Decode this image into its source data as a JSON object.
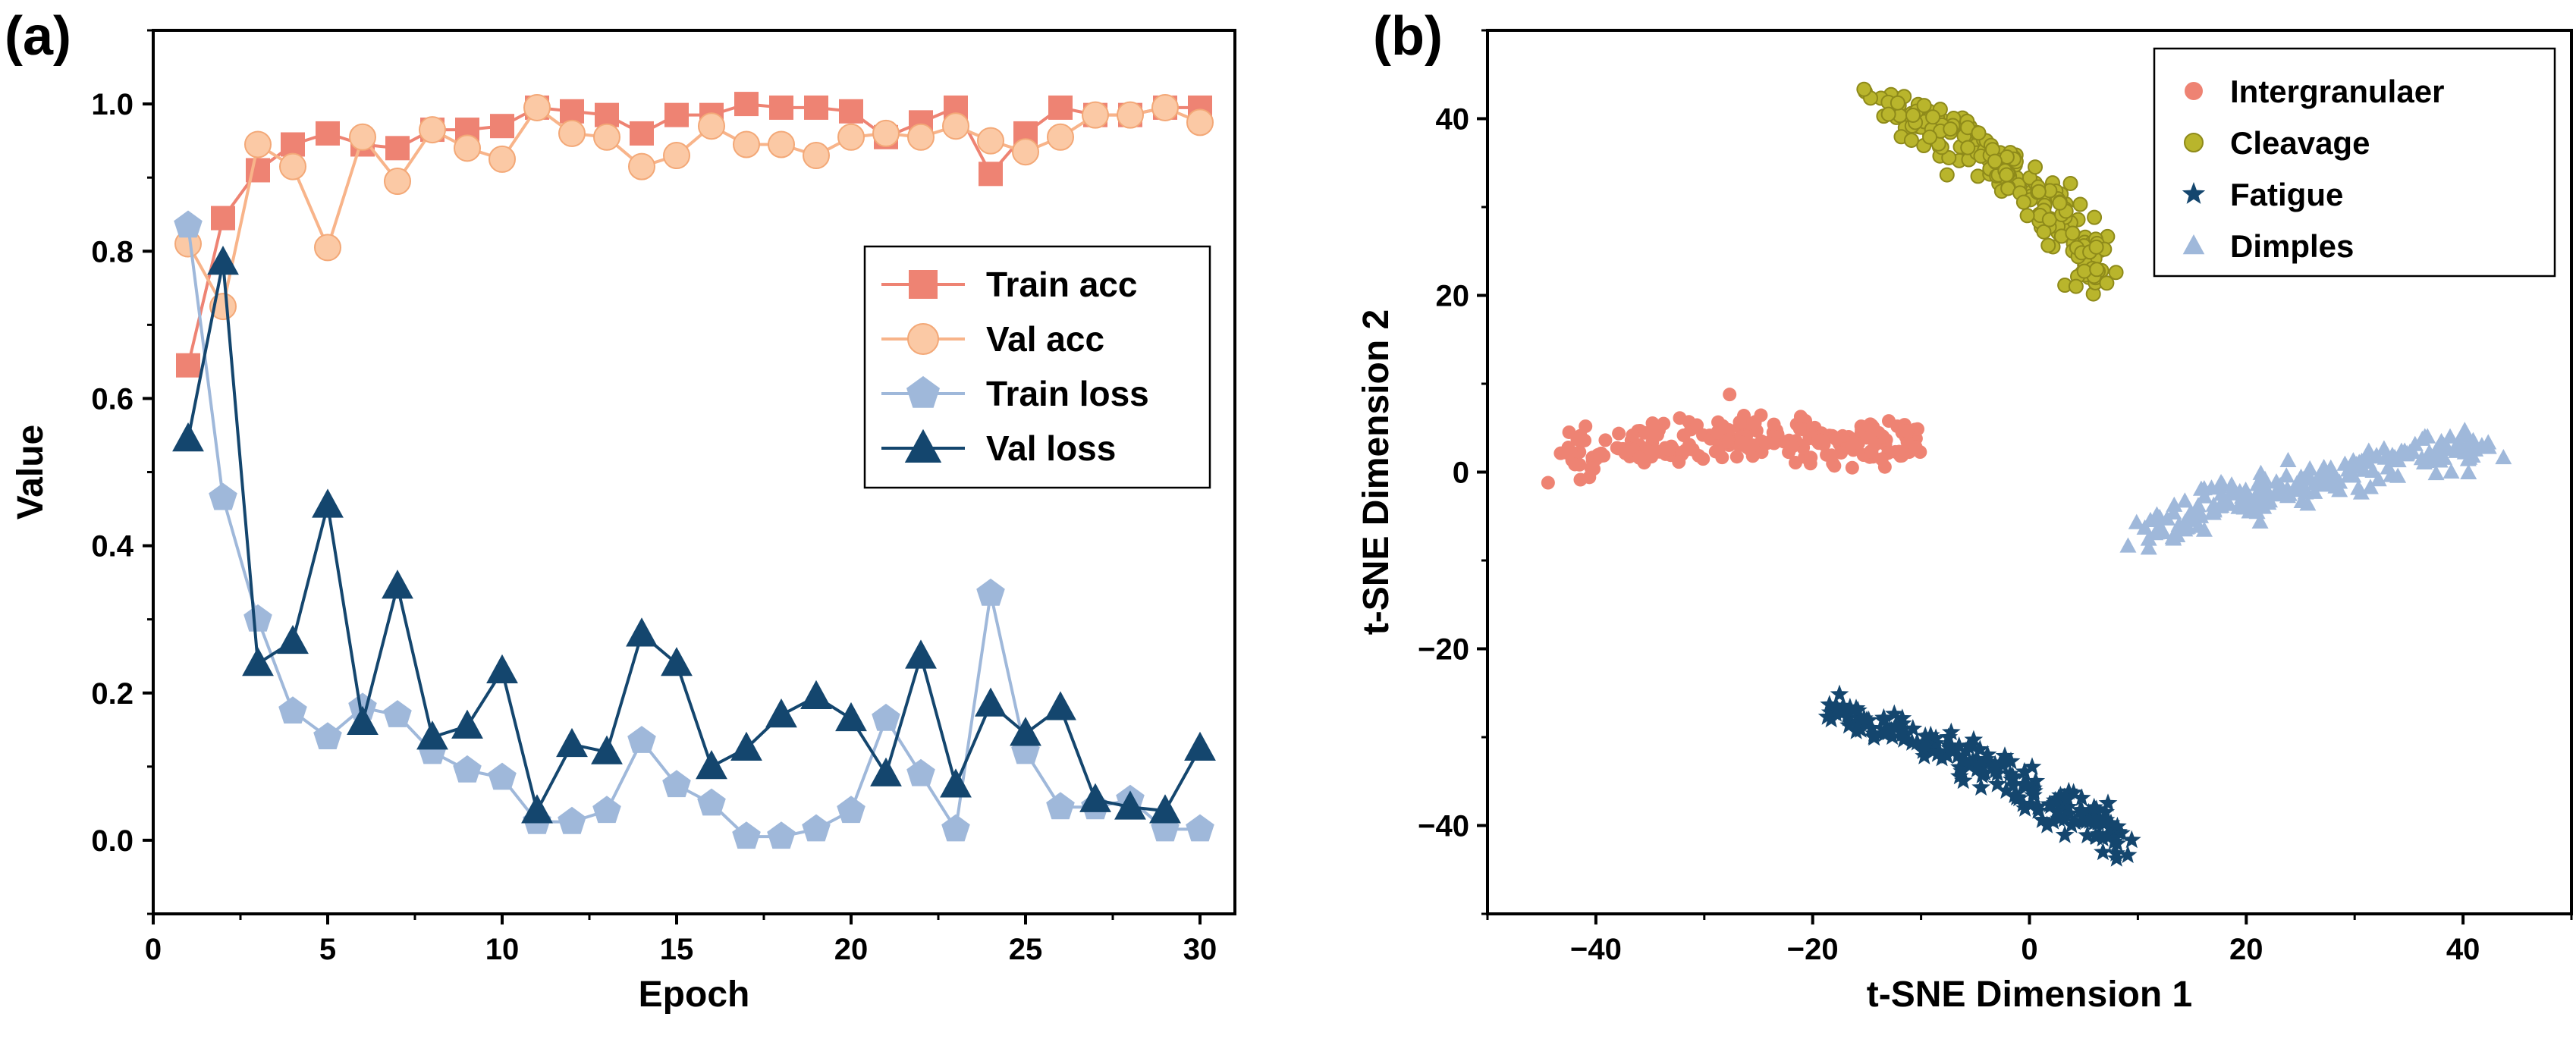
{
  "chart_data": [
    {
      "panel_label": "(a)",
      "type": "line",
      "title": "",
      "xlabel": "Epoch",
      "ylabel": "Value",
      "xlim": [
        0,
        31
      ],
      "ylim": [
        -0.1,
        1.1
      ],
      "xticks": [
        0,
        5,
        10,
        15,
        20,
        25,
        30
      ],
      "yticks": [
        0.0,
        0.2,
        0.4,
        0.6,
        0.8,
        1.0
      ],
      "xtick_labels": [
        "0",
        "5",
        "10",
        "15",
        "20",
        "25",
        "30"
      ],
      "ytick_labels": [
        "0.0",
        "0.2",
        "0.4",
        "0.6",
        "0.8",
        "1.0"
      ],
      "grid": false,
      "legend_position": "center-right",
      "x": [
        1,
        2,
        3,
        4,
        5,
        6,
        7,
        8,
        9,
        10,
        11,
        12,
        13,
        14,
        15,
        16,
        17,
        18,
        19,
        20,
        21,
        22,
        23,
        24,
        25,
        26,
        27,
        28,
        29,
        30
      ],
      "series": [
        {
          "name": "Train acc",
          "marker": "square",
          "color": "#ee8373",
          "line_color": "#ee8373",
          "values": [
            0.645,
            0.845,
            0.91,
            0.945,
            0.96,
            0.945,
            0.94,
            0.965,
            0.965,
            0.97,
            0.995,
            0.99,
            0.985,
            0.96,
            0.985,
            0.985,
            1.0,
            0.995,
            0.995,
            0.99,
            0.955,
            0.975,
            0.995,
            0.905,
            0.96,
            0.995,
            0.985,
            0.985,
            0.995,
            0.995
          ]
        },
        {
          "name": "Val acc",
          "marker": "circle",
          "color": "#fbc9a5",
          "line_color": "#f8b48a",
          "values": [
            0.81,
            0.725,
            0.945,
            0.915,
            0.805,
            0.955,
            0.895,
            0.965,
            0.94,
            0.925,
            0.995,
            0.96,
            0.955,
            0.915,
            0.93,
            0.97,
            0.945,
            0.945,
            0.93,
            0.955,
            0.96,
            0.955,
            0.97,
            0.95,
            0.935,
            0.955,
            0.985,
            0.985,
            0.995,
            0.975
          ]
        },
        {
          "name": "Train loss",
          "marker": "pentagon",
          "color": "#9fb8da",
          "line_color": "#9fb8da",
          "values": [
            0.835,
            0.465,
            0.3,
            0.175,
            0.14,
            0.18,
            0.17,
            0.12,
            0.095,
            0.085,
            0.025,
            0.025,
            0.04,
            0.135,
            0.075,
            0.05,
            0.005,
            0.005,
            0.015,
            0.04,
            0.165,
            0.09,
            0.015,
            0.335,
            0.12,
            0.045,
            0.045,
            0.055,
            0.015,
            0.015
          ]
        },
        {
          "name": "Val loss",
          "marker": "triangle",
          "color": "#14466e",
          "line_color": "#14466e",
          "values": [
            0.545,
            0.785,
            0.24,
            0.27,
            0.455,
            0.16,
            0.345,
            0.14,
            0.155,
            0.23,
            0.04,
            0.13,
            0.12,
            0.28,
            0.24,
            0.1,
            0.125,
            0.17,
            0.195,
            0.165,
            0.09,
            0.25,
            0.075,
            0.185,
            0.145,
            0.18,
            0.055,
            0.045,
            0.04,
            0.125
          ]
        }
      ]
    },
    {
      "panel_label": "(b)",
      "type": "scatter",
      "title": "",
      "xlabel": "t-SNE Dimension 1",
      "ylabel": "t-SNE Dimension 2",
      "xlim": [
        -50,
        50
      ],
      "ylim": [
        -50,
        50
      ],
      "xticks": [
        -40,
        -20,
        0,
        20,
        40
      ],
      "yticks": [
        -40,
        -20,
        0,
        20,
        40
      ],
      "xtick_labels": [
        "−40",
        "−20",
        "0",
        "20",
        "40"
      ],
      "ytick_labels": [
        "−40",
        "−20",
        "0",
        "20",
        "40"
      ],
      "grid": false,
      "legend_position": "top-right",
      "series": [
        {
          "name": "Intergranulaer",
          "marker": "circle",
          "color": "#ee8373",
          "cluster": {
            "path": [
              [
                -43,
                2
              ],
              [
                -35,
                3
              ],
              [
                -25,
                4
              ],
              [
                -18,
                3
              ],
              [
                -10,
                3.5
              ]
            ],
            "spread": 2.2,
            "count": 230
          }
        },
        {
          "name": "Cleavage",
          "marker": "circle",
          "color": "#b9b52c",
          "cluster": {
            "path": [
              [
                -13.5,
                42
              ],
              [
                -8,
                39
              ],
              [
                -3,
                35
              ],
              [
                1,
                31
              ],
              [
                4,
                27
              ],
              [
                6,
                22
              ]
            ],
            "spread": 2.0,
            "count": 220
          }
        },
        {
          "name": "Fatigue",
          "marker": "star",
          "color": "#14466e",
          "cluster": {
            "path": [
              [
                -19,
                -27
              ],
              [
                -13,
                -29
              ],
              [
                -6,
                -32
              ],
              [
                0,
                -36
              ],
              [
                5,
                -39
              ],
              [
                8,
                -42
              ]
            ],
            "spread": 1.7,
            "count": 200
          }
        },
        {
          "name": "Dimples",
          "marker": "triangle",
          "color": "#9fb8da",
          "cluster": {
            "path": [
              [
                11,
                -7
              ],
              [
                16,
                -4
              ],
              [
                24,
                -2
              ],
              [
                32,
                1
              ],
              [
                38,
                2.5
              ],
              [
                42,
                3
              ]
            ],
            "spread": 2.0,
            "count": 210
          }
        }
      ]
    }
  ]
}
